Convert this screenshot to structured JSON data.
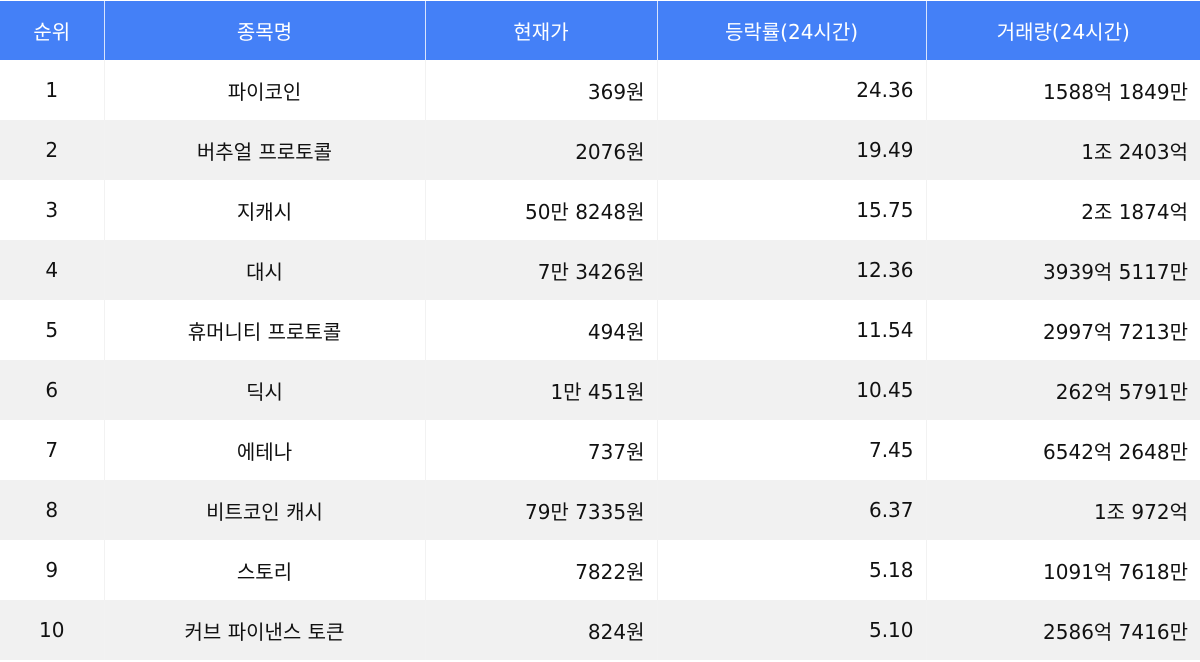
{
  "header_color": "#4480f7",
  "columns": [
    "순위",
    "종목명",
    "현재가",
    "등락률(24시간)",
    "거래량(24시간)"
  ],
  "rows": [
    [
      "1",
      "파이코인",
      "369원",
      "24.36",
      "1588억 1849만"
    ],
    [
      "2",
      "버추얼 프로토콜",
      "2076원",
      "19.49",
      "1조 2403억"
    ],
    [
      "3",
      "지캐시",
      "50만 8248원",
      "15.75",
      "2조 1874억"
    ],
    [
      "4",
      "대시",
      "7만 3426원",
      "12.36",
      "3939억 5117만"
    ],
    [
      "5",
      "휴머니티 프로토콜",
      "494원",
      "11.54",
      "2997억 7213만"
    ],
    [
      "6",
      "딕시",
      "1만 451원",
      "10.45",
      "262억 5791만"
    ],
    [
      "7",
      "에테나",
      "737원",
      "7.45",
      "6542억 2648만"
    ],
    [
      "8",
      "비트코인 캐시",
      "79만 7335원",
      "6.37",
      "1조 972억"
    ],
    [
      "9",
      "스토리",
      "7822원",
      "5.18",
      "1091억 7618만"
    ],
    [
      "10",
      "커브 파이낸스 토큰",
      "824원",
      "5.10",
      "2586억 7416만"
    ]
  ]
}
